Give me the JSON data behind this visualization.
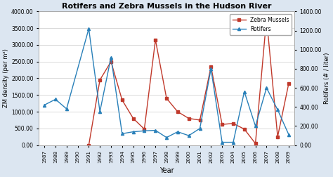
{
  "title": "Rotifers and Zebra Mussels in the Hudson River",
  "xlabel": "Year",
  "ylabel_left": "ZM density (per m²)",
  "ylabel_right": "Rotifers (# / liter)",
  "years": [
    1987,
    1988,
    1989,
    1990,
    1991,
    1992,
    1993,
    1994,
    1995,
    1996,
    1997,
    1998,
    1999,
    2000,
    2001,
    2002,
    2003,
    2004,
    2005,
    2006,
    2007,
    2008,
    2009
  ],
  "zebra_mussels": [
    null,
    null,
    null,
    null,
    0,
    1950,
    2500,
    1350,
    800,
    480,
    3150,
    1400,
    1000,
    800,
    750,
    2350,
    620,
    650,
    480,
    50,
    3800,
    250,
    1850
  ],
  "rotifers": [
    420,
    480,
    380,
    null,
    1220,
    350,
    920,
    120,
    140,
    150,
    155,
    80,
    140,
    100,
    175,
    800,
    30,
    30,
    560,
    200,
    600,
    370,
    110
  ],
  "zm_color": "#c0392b",
  "rot_color": "#2980b9",
  "ylim_left": [
    0,
    4000
  ],
  "ylim_right": [
    0,
    1400
  ],
  "yticks_left": [
    0,
    500,
    1000,
    1500,
    2000,
    2500,
    3000,
    3500,
    4000
  ],
  "ytick_labels_left": [
    "0.00",
    "500.00",
    "1000.00",
    "1500.00",
    "2000.00",
    "2500.00",
    "3000.00",
    "3500.00",
    "4000.00"
  ],
  "yticks_right": [
    0,
    200,
    400,
    600,
    800,
    1000,
    1200,
    1400
  ],
  "ytick_labels_right": [
    "0.00",
    "200.00",
    "400.00",
    "600.00",
    "800.00",
    "1000.00",
    "1200.00",
    "1400.00"
  ],
  "legend_labels": [
    "Zebra Mussels",
    "Rotifers"
  ],
  "plot_bg": "#ffffff",
  "fig_bg": "#dce6f1"
}
